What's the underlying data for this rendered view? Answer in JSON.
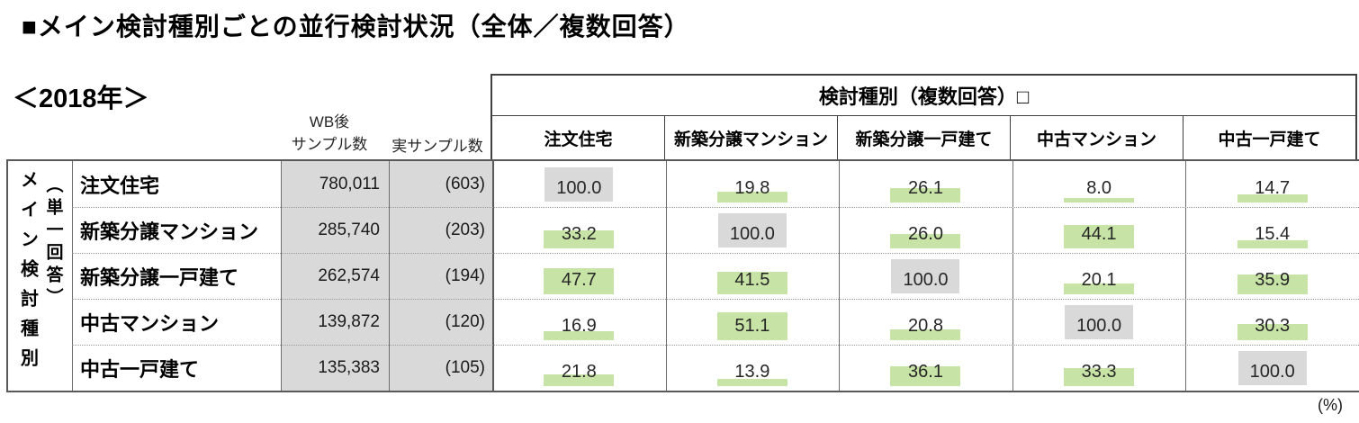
{
  "page": {
    "title": "■メイン検討種別ごとの並行検討状況（全体／複数回答）",
    "year_label": "＜2018年＞",
    "percent_label": "(%)"
  },
  "left_header": {
    "main": "メイン検討種別",
    "sub": "（単一回答）"
  },
  "sample_headers": {
    "wb_line1": "WB後",
    "wb_line2": "サンプル数",
    "actual": "実サンプル数"
  },
  "group_header": "検討種別（複数回答）□",
  "colors": {
    "bar_green": "#c7e3a5",
    "highlight_gray": "#d9d9d9",
    "column_bg_gray": "#d9d9d9",
    "border_dark": "#595959",
    "text": "#262626"
  },
  "chart_data": {
    "type": "table",
    "title": "■メイン検討種別ごとの並行検討状況（全体／複数回答）",
    "subtitle": "＜2018年＞",
    "unit": "%",
    "row_axis_label": "メイン検討種別（単一回答）",
    "column_axis_label": "検討種別（複数回答）□",
    "columns": [
      "注文住宅",
      "新築分譲マンション",
      "新築分譲一戸建て",
      "中古マンション",
      "中古一戸建て"
    ],
    "sample_columns": [
      "WB後サンプル数",
      "実サンプル数"
    ],
    "rows": [
      {
        "label": "注文住宅",
        "wb_sample": "780,011",
        "actual_sample": "(603)",
        "values": [
          100.0,
          19.8,
          26.1,
          8.0,
          14.7
        ]
      },
      {
        "label": "新築分譲マンション",
        "wb_sample": "285,740",
        "actual_sample": "(203)",
        "values": [
          33.2,
          100.0,
          26.0,
          44.1,
          15.4
        ]
      },
      {
        "label": "新築分譲一戸建て",
        "wb_sample": "262,574",
        "actual_sample": "(194)",
        "values": [
          47.7,
          41.5,
          100.0,
          20.1,
          35.9
        ]
      },
      {
        "label": "中古マンション",
        "wb_sample": "139,872",
        "actual_sample": "(120)",
        "values": [
          16.9,
          51.1,
          20.8,
          100.0,
          30.3
        ]
      },
      {
        "label": "中古一戸建て",
        "wb_sample": "135,383",
        "actual_sample": "(105)",
        "values": [
          21.8,
          13.9,
          36.1,
          33.3,
          100.0
        ]
      }
    ],
    "legend": "セル内の緑バーは値に比例、対角セル(100.0)はグレー強調",
    "grid": true
  }
}
